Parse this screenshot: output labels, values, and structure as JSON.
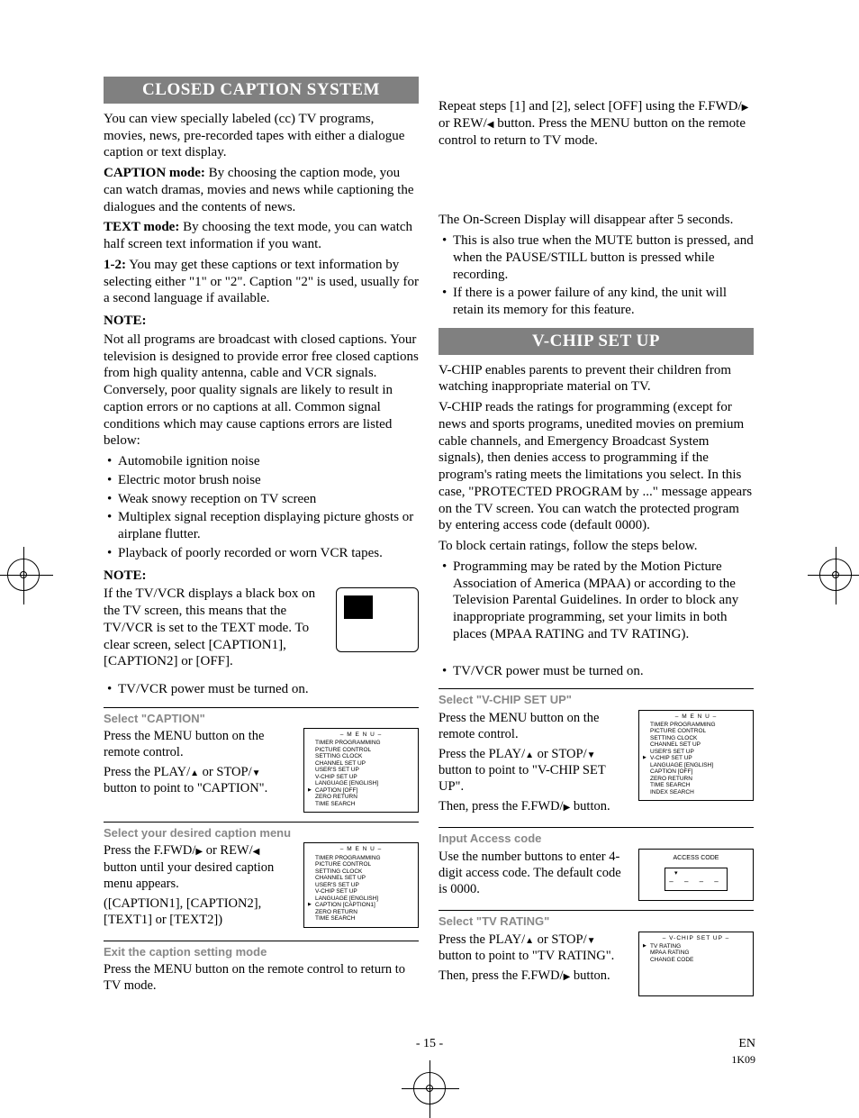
{
  "sections": {
    "cc_title": "CLOSED CAPTION SYSTEM",
    "vchip_title": "V-CHIP SET UP"
  },
  "col1": {
    "intro": "You can view specially labeled (cc) TV programs, movies, news, pre-recorded tapes with either a dialogue caption or text display.",
    "caption_mode_label": "CAPTION mode:",
    "caption_mode_text": " By choosing the caption mode, you can watch dramas, movies and news while captioning the dialogues and the contents of news.",
    "text_mode_label": "TEXT mode:",
    "text_mode_text": " By choosing the text mode, you can watch half screen text information if you want.",
    "one_two_label": "1-2:",
    "one_two_text": " You may get these captions or text information by selecting either \"1\" or \"2\". Caption \"2\" is used, usually for a second language if available.",
    "note_label": "NOTE:",
    "note_text": "Not all programs are broadcast with closed captions. Your television is designed to provide error free closed captions from high quality antenna, cable and VCR signals. Conversely, poor quality signals are likely to result in caption errors or no captions at all. Common signal conditions which may cause captions errors are listed below:",
    "note_bullets": [
      "Automobile ignition noise",
      "Electric motor brush noise",
      "Weak snowy reception on TV screen",
      "Multiplex signal reception displaying picture ghosts or airplane flutter.",
      "Playback of poorly recorded or worn VCR tapes."
    ],
    "note2_label": "NOTE:",
    "note2_text": "If the TV/VCR displays a black box on the TV screen, this means that the TV/VCR is set to the TEXT mode. To clear screen, select [CAPTION1], [CAPTION2] or [OFF].",
    "power_bullet": "TV/VCR power must be turned on.",
    "step1_title": "Select \"CAPTION\"",
    "step1_a": "Press the MENU button on the remote control.",
    "step1_b_pre": "Press the PLAY/",
    "step1_b_mid": " or STOP/",
    "step1_b_post": " button to point to \"CAPTION\".",
    "step2_title": "Select your desired caption menu",
    "step2_a_pre": "Press the F.FWD/",
    "step2_a_mid": " or REW/",
    "step2_a_post": " button until your desired caption menu appears.",
    "step2_b": "([CAPTION1], [CAPTION2], [TEXT1] or [TEXT2])",
    "step3_title": "Exit the caption setting mode",
    "step3_text": "Press the MENU button on the remote control to return to TV mode."
  },
  "col2": {
    "repeat_pre": "Repeat steps [1] and [2], select [OFF] using the F.FWD/",
    "repeat_mid": " or REW/",
    "repeat_post": " button. Press the MENU button on the remote control to return to TV mode.",
    "osd_text": "The On-Screen Display will disappear after 5 seconds.",
    "osd_bullets": [
      "This is also true when the MUTE button is pressed, and when the PAUSE/STILL button is pressed while recording.",
      "If there is a power failure of any kind, the unit will retain its memory for this feature."
    ],
    "vchip_intro1": "V-CHIP enables parents to prevent their children from watching inappropriate material on TV.",
    "vchip_intro2": "V-CHIP reads the ratings for programming (except for news and sports programs, unedited movies on premium cable channels, and Emergency Broadcast System signals), then denies access to programming if the program's rating meets the limitations you select. In this case, \"PROTECTED PROGRAM by ...\" message appears on the TV screen. You can watch the protected program by entering access code (default 0000).",
    "vchip_intro3": "To block certain ratings, follow the steps below.",
    "vchip_bullet": "Programming may be rated by the Motion Picture Association of America (MPAA) or according to the Television Parental Guidelines. In order to block any inappropriate programming, set your limits in both places (MPAA RATING and TV RATING).",
    "vchip_power": "TV/VCR power must be turned on.",
    "vstep1_title": "Select \"V-CHIP SET UP\"",
    "vstep1_a": "Press the MENU button on the remote control.",
    "vstep1_b_pre": "Press the PLAY/",
    "vstep1_b_mid": " or STOP/",
    "vstep1_b_post": " button to point to \"V-CHIP SET UP\".",
    "vstep1_c_pre": "Then, press the F.FWD/",
    "vstep1_c_post": " button.",
    "vstep2_title": "Input Access code",
    "vstep2_text": "Use the number buttons to enter 4-digit access code. The default code is 0000.",
    "vstep3_title": "Select \"TV RATING\"",
    "vstep3_a_pre": "Press the PLAY/",
    "vstep3_a_mid": " or STOP/",
    "vstep3_a_post": " button to point to \"TV RATING\".",
    "vstep3_b_pre": "Then, press the F.FWD/",
    "vstep3_b_post": " button."
  },
  "menu": {
    "title": "– M E N U –",
    "items_caption_off": [
      "TIMER PROGRAMMING",
      "PICTURE CONTROL",
      "SETTING CLOCK",
      "CHANNEL SET UP",
      "USER'S SET UP",
      "V-CHIP SET UP",
      "LANGUAGE   [ENGLISH]",
      "CAPTION [OFF]",
      "ZERO RETURN",
      "TIME SEARCH"
    ],
    "items_caption_cap1": [
      "TIMER PROGRAMMING",
      "PICTURE CONTROL",
      "SETTING CLOCK",
      "CHANNEL SET UP",
      "USER'S SET UP",
      "V-CHIP SET UP",
      "LANGUAGE   [ENGLISH]",
      "CAPTION [CAPTION1]",
      "ZERO RETURN",
      "TIME SEARCH"
    ],
    "items_vchip": [
      "TIMER PROGRAMMING",
      "PICTURE CONTROL",
      "SETTING CLOCK",
      "CHANNEL SET UP",
      "USER'S SET UP",
      "V-CHIP SET UP",
      "LANGUAGE   [ENGLISH]",
      "CAPTION   [OFF]",
      "ZERO RETURN",
      "TIME SEARCH",
      "INDEX SEARCH"
    ],
    "sel_caption_idx": 7,
    "sel_vchip_idx": 5,
    "access_label": "ACCESS CODE",
    "vchip_box_title": "– V-CHIP SET UP –",
    "vchip_box_items": [
      "TV RATING",
      "MPAA RATING",
      "CHANGE CODE"
    ],
    "vchip_box_sel": 0
  },
  "footer": {
    "page": "- 15 -",
    "lang": "EN",
    "code": "1K09"
  }
}
